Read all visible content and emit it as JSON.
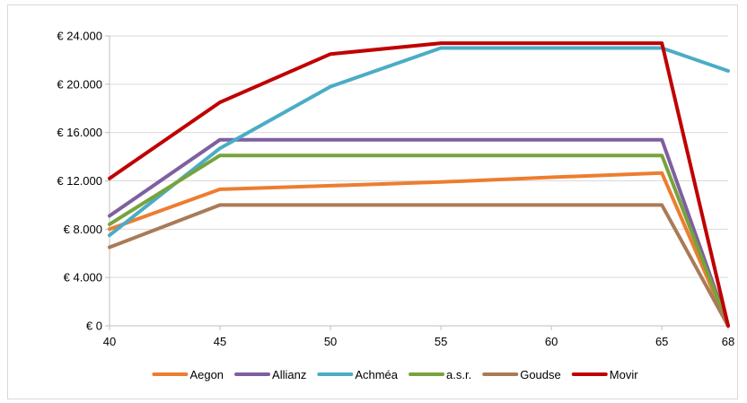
{
  "chart_data": {
    "type": "line",
    "x": [
      40,
      45,
      50,
      55,
      60,
      65,
      68
    ],
    "x_tick_labels": [
      "40",
      "45",
      "50",
      "55",
      "60",
      "65",
      "68"
    ],
    "y_tick_labels": [
      "€ 0",
      "€ 4.000",
      "€ 8.000",
      "€ 12.000",
      "€ 16.000",
      "€ 20.000",
      "€ 24.000"
    ],
    "y_ticks": [
      0,
      4000,
      8000,
      12000,
      16000,
      20000,
      24000
    ],
    "ylim": [
      0,
      24000
    ],
    "xlim": [
      40,
      68
    ],
    "grid": "horizontal",
    "legend_position": "bottom",
    "series": [
      {
        "name": "Aegon",
        "color": "#ED7D31",
        "values": [
          8000,
          11300,
          11600,
          11900,
          12300,
          12650,
          0
        ]
      },
      {
        "name": "Allianz",
        "color": "#7F5FA0",
        "values": [
          9100,
          15400,
          15400,
          15400,
          15400,
          15400,
          0
        ]
      },
      {
        "name": "Achméa",
        "color": "#4BACC6",
        "values": [
          7500,
          14700,
          19800,
          23000,
          23000,
          23000,
          21100
        ]
      },
      {
        "name": "a.s.r.",
        "color": "#77A33C",
        "values": [
          8400,
          14100,
          14100,
          14100,
          14100,
          14100,
          0
        ]
      },
      {
        "name": "Goudse",
        "color": "#A97B57",
        "values": [
          6500,
          10000,
          10000,
          10000,
          10000,
          10000,
          0
        ]
      },
      {
        "name": "Movir",
        "color": "#C00000",
        "values": [
          12200,
          18500,
          22500,
          23400,
          23400,
          23400,
          0
        ]
      }
    ]
  }
}
